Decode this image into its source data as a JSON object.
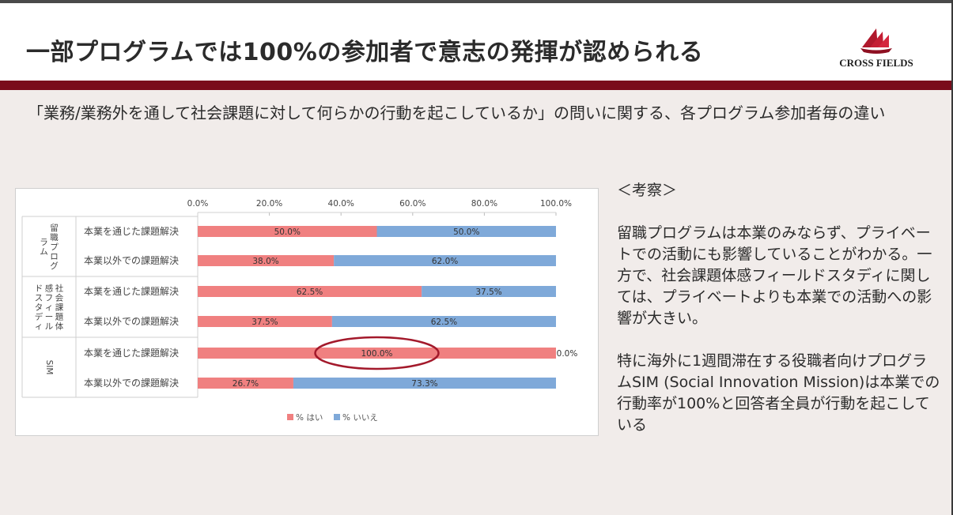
{
  "header": {
    "title": "一部プログラムでは100%の参加者で意志の発揮が認められる",
    "logo_text": "CROSS FIELDS"
  },
  "subtitle": "「業務/業務外を通して社会課題に対して何らかの行動を起こしているか」の問いに関する、各プログラム参加者毎の違い",
  "commentary": {
    "heading": "＜考察＞",
    "para1": "留職プログラムは本業のみならず、プライベートでの活動にも影響していることがわかる。一方で、社会課題体感フィールドスタディに関しては、プライベートよりも本業での活動への影響が大きい。",
    "para2": "特に海外に1週間滞在する役職者向けプログラムSIM (Social Innovation Mission)は本業での行動率が100%と回答者全員が行動を起こしている"
  },
  "colors": {
    "accent": "#7a0c1c",
    "yes": "#f08080",
    "no": "#7fa9d9",
    "highlight": "#a3192b"
  },
  "chart_data": {
    "type": "bar",
    "orientation": "horizontal",
    "stacked": true,
    "xlim": [
      0,
      100
    ],
    "x_ticks": [
      "0.0%",
      "20.0%",
      "40.0%",
      "60.0%",
      "80.0%",
      "100.0%"
    ],
    "x_axis_position": "top",
    "groups": [
      {
        "name": "留職プログラム",
        "categories": [
          "本業を通じた課題解決",
          "本業以外での課題解決"
        ]
      },
      {
        "name": "社会課題体感フィールドスタディ",
        "categories": [
          "本業を通じた課題解決",
          "本業以外での課題解決"
        ]
      },
      {
        "name": "SIM",
        "categories": [
          "本業を通じた課題解決",
          "本業以外での課題解決"
        ]
      }
    ],
    "group_labels": [
      [
        "留職プログ",
        "ラム"
      ],
      [
        "社会課題体",
        "感フィール",
        "ドスタディ"
      ],
      [
        "SIM"
      ]
    ],
    "series": [
      {
        "name": "% はい",
        "values": [
          50.0,
          38.0,
          62.5,
          37.5,
          100.0,
          26.7
        ],
        "labels": [
          "50.0%",
          "38.0%",
          "62.5%",
          "37.5%",
          "100.0%",
          "26.7%"
        ]
      },
      {
        "name": "% いいえ",
        "values": [
          50.0,
          62.0,
          37.5,
          62.5,
          0.0,
          73.3
        ],
        "labels": [
          "50.0%",
          "62.0%",
          "37.5%",
          "62.5%",
          "0.0%",
          "73.3%"
        ]
      }
    ],
    "annotation": "ellipse highlighting SIM 本業を通じた課題解決 100.0%",
    "legend_position": "bottom"
  }
}
